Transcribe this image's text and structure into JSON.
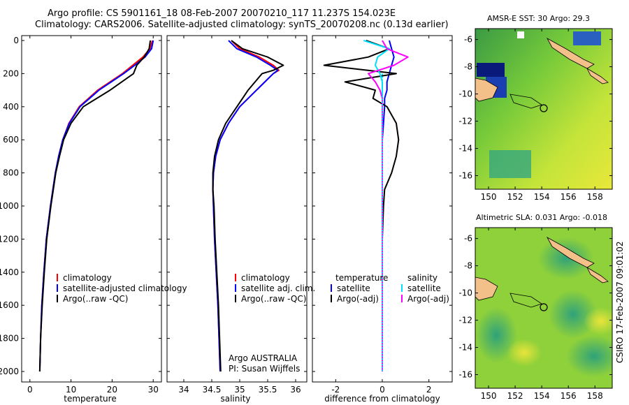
{
  "header": {
    "line1": "Argo profile: CS 5901161_18 08-Feb-2007 20070210_117 11.237S 154.023E",
    "line2": "Climatology: CARS2006. Satellite-adjusted climatology: synTS_20070208.nc (0.13d earlier)"
  },
  "footer": {
    "stamp": "CSIRO 17-Feb-2007 09:01:02"
  },
  "colors": {
    "climatology": "#ff0000",
    "satellite": "#0000ff",
    "argo": "#000000",
    "sal_satellite": "#00e0ff",
    "sal_argo": "#ff00ff"
  },
  "chart_data": [
    {
      "type": "line",
      "xlabel": "temperature",
      "ylim": [
        2050,
        0
      ],
      "xlim": [
        -2,
        32
      ],
      "xticks": [
        0,
        10,
        20,
        30
      ],
      "yticks": [
        0,
        200,
        400,
        600,
        800,
        1000,
        1200,
        1400,
        1600,
        1800,
        2000
      ],
      "legend": [
        "climatology",
        "satellite-adjusted climatology",
        "Argo(..raw -QC)"
      ],
      "depth": [
        0,
        50,
        100,
        150,
        200,
        300,
        400,
        500,
        600,
        700,
        800,
        900,
        1000,
        1200,
        1400,
        1600,
        1800,
        2000
      ],
      "series": [
        {
          "name": "climatology",
          "values": [
            29.8,
            29.2,
            27.5,
            25.0,
            22.5,
            16.5,
            12.0,
            9.5,
            8.0,
            7.0,
            6.2,
            5.6,
            5.0,
            4.0,
            3.4,
            2.9,
            2.6,
            2.4
          ]
        },
        {
          "name": "satellite-adjusted climatology",
          "values": [
            30.0,
            29.6,
            28.0,
            25.5,
            22.8,
            16.8,
            12.2,
            9.6,
            8.0,
            7.0,
            6.2,
            5.6,
            5.0,
            4.0,
            3.4,
            2.9,
            2.6,
            2.4
          ]
        },
        {
          "name": "Argo(..raw -QC)",
          "values": [
            29.3,
            29.0,
            27.8,
            26.0,
            25.2,
            19.5,
            13.0,
            10.0,
            8.2,
            7.2,
            6.3,
            5.7,
            5.1,
            4.1,
            3.5,
            3.0,
            2.6,
            2.4
          ]
        }
      ]
    },
    {
      "type": "line",
      "xlabel": "salinity",
      "ylim": [
        2050,
        0
      ],
      "xlim": [
        33.7,
        36.2
      ],
      "xticks": [
        34,
        34.5,
        35,
        35.5,
        36
      ],
      "legend": [
        "climatology",
        "satellite adj. clim.",
        "Argo(..raw -QC)"
      ],
      "annotation": [
        "Argo AUSTRALIA",
        "PI: Susan Wijffels"
      ],
      "depth": [
        0,
        50,
        100,
        150,
        180,
        200,
        300,
        400,
        500,
        600,
        700,
        800,
        900,
        1000,
        1200,
        1400,
        1600,
        1800,
        2000
      ],
      "series": [
        {
          "name": "climatology",
          "values": [
            34.85,
            35.0,
            35.35,
            35.6,
            35.7,
            35.6,
            35.3,
            35.0,
            34.8,
            34.65,
            34.57,
            34.53,
            34.52,
            34.53,
            34.55,
            34.58,
            34.61,
            34.63,
            34.65
          ]
        },
        {
          "name": "satellite adj. clim.",
          "values": [
            34.8,
            34.95,
            35.3,
            35.55,
            35.68,
            35.6,
            35.3,
            35.0,
            34.8,
            34.65,
            34.57,
            34.53,
            34.52,
            34.53,
            34.55,
            34.58,
            34.61,
            34.63,
            34.65
          ]
        },
        {
          "name": "Argo(..raw -QC)",
          "values": [
            34.85,
            35.05,
            35.5,
            35.78,
            35.6,
            35.4,
            35.15,
            34.95,
            34.75,
            34.62,
            34.55,
            34.52,
            34.52,
            34.54,
            34.56,
            34.59,
            34.62,
            34.64,
            34.66
          ]
        }
      ]
    },
    {
      "type": "line",
      "xlabel": "difference from climatology",
      "ylim": [
        2050,
        0
      ],
      "xlim": [
        -3,
        3
      ],
      "xticks": [
        -2,
        0,
        2
      ],
      "legend_temperature": {
        "title": "temperature",
        "items": [
          "satellite",
          "Argo(-adj)"
        ]
      },
      "legend_salinity": {
        "title": "salinity",
        "items": [
          "satellite",
          "Argo(-adj)"
        ]
      },
      "depth": [
        0,
        50,
        100,
        150,
        200,
        250,
        300,
        350,
        400,
        500,
        600,
        700,
        800,
        900,
        1000,
        1200,
        1400,
        1600,
        1800,
        2000
      ],
      "series": [
        {
          "name": "temperature satellite",
          "values": [
            0.3,
            0.4,
            0.5,
            0.4,
            0.3,
            0.2,
            0.2,
            0.1,
            0.1,
            0.05,
            0.0,
            0.0,
            0.0,
            0.0,
            0.0,
            0.0,
            0.0,
            0.0,
            0.0,
            0.0
          ]
        },
        {
          "name": "temperature Argo(-adj)",
          "values": [
            -0.7,
            0.3,
            -0.6,
            -2.5,
            0.6,
            -1.6,
            -0.3,
            -0.4,
            0.2,
            0.6,
            0.7,
            0.6,
            0.4,
            0.1,
            0.05,
            0.0,
            0.0,
            0.0,
            0.0,
            0.0
          ]
        },
        {
          "name": "salinity satellite",
          "values": [
            -0.8,
            0.3,
            -0.2,
            -0.3,
            -0.1,
            0.0,
            0.0,
            0.0,
            0.0,
            0.0,
            0.0,
            0.0,
            0.0,
            0.0,
            0.0,
            0.0,
            0.0,
            0.0,
            0.0,
            0.0
          ]
        },
        {
          "name": "salinity Argo(-adj)",
          "values": [
            0.0,
            0.2,
            1.1,
            0.5,
            -0.6,
            -0.3,
            -0.1,
            0.0,
            0.0,
            0.0,
            0.0,
            0.0,
            0.0,
            0.0,
            0.0,
            0.0,
            0.0,
            0.0,
            0.0,
            0.0
          ]
        }
      ]
    },
    {
      "type": "heatmap",
      "title": "AMSR-E SST: 30 Argo: 29.3",
      "xlim": [
        149,
        159.3
      ],
      "ylim": [
        -17,
        -5.2
      ],
      "xticks": [
        150,
        152,
        154,
        156,
        158
      ],
      "yticks": [
        -6,
        -8,
        -10,
        -12,
        -14,
        -16
      ],
      "float_position": {
        "lon": 154.023,
        "lat": -11.237
      }
    },
    {
      "type": "heatmap",
      "title": "Altimetric SLA: 0.031 Argo: -0.018",
      "xlim": [
        149,
        159.3
      ],
      "ylim": [
        -17,
        -5.2
      ],
      "xticks": [
        150,
        152,
        154,
        156,
        158
      ],
      "yticks": [
        -6,
        -8,
        -10,
        -12,
        -14,
        -16
      ],
      "float_position": {
        "lon": 154.023,
        "lat": -11.237
      }
    }
  ]
}
